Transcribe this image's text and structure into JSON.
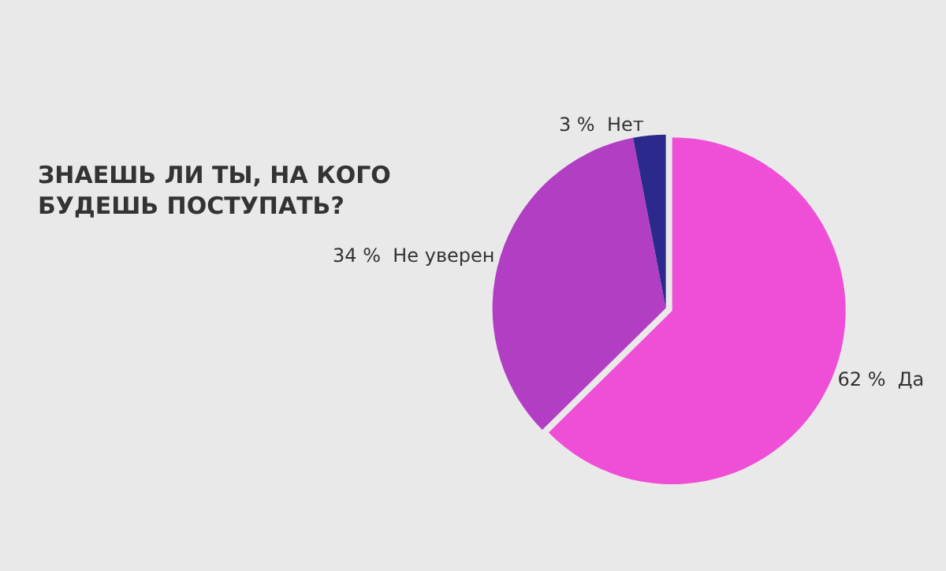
{
  "chart_data": {
    "type": "pie",
    "title": "ЗНАЕШЬ ЛИ ТЫ, НА КОГО БУДЕШЬ ПОСТУПАТЬ?",
    "categories": [
      "Да",
      "Не уверен",
      "Нет"
    ],
    "values": [
      62,
      34,
      3
    ],
    "value_labels": [
      "62 %",
      "34 %",
      "3 %"
    ],
    "colors": [
      "#ee4fd6",
      "#b23ec4",
      "#2b2a8c"
    ],
    "legend": false
  }
}
